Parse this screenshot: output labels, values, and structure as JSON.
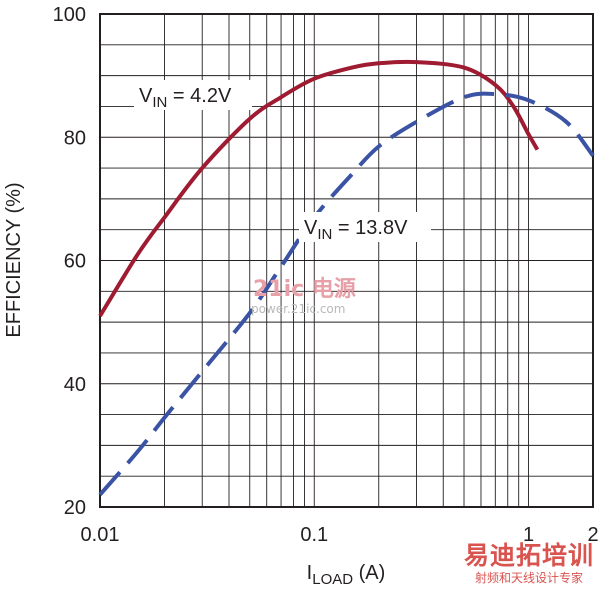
{
  "chart_data": {
    "type": "line",
    "x_scale": "log",
    "xlim": [
      0.01,
      2
    ],
    "ylim": [
      20,
      100
    ],
    "grid": true,
    "xlabel_main": "I",
    "xlabel_sub": "LOAD",
    "xlabel_unit": " (A)",
    "ylabel": "EFFICIENCY (%)",
    "x_ticks": [
      {
        "value": 0.01,
        "label": "0.01"
      },
      {
        "value": 0.1,
        "label": "0.1"
      },
      {
        "value": 1,
        "label": "1"
      },
      {
        "value": 2,
        "label": "2"
      }
    ],
    "y_ticks": [
      {
        "value": 20,
        "label": "20"
      },
      {
        "value": 40,
        "label": "40"
      },
      {
        "value": 60,
        "label": "60"
      },
      {
        "value": 80,
        "label": "80"
      },
      {
        "value": 100,
        "label": "100"
      }
    ],
    "series": [
      {
        "label_main": "V",
        "label_sub": "IN",
        "label_rest": " = 4.2V",
        "color": "#9e1b32",
        "dash": "solid",
        "x": [
          0.01,
          0.015,
          0.02,
          0.03,
          0.05,
          0.07,
          0.1,
          0.15,
          0.2,
          0.3,
          0.5,
          0.7,
          0.85,
          1.0,
          1.1
        ],
        "y": [
          51,
          61,
          67,
          75,
          83,
          86.5,
          89.5,
          91.3,
          92,
          92.2,
          91.3,
          88.5,
          85,
          80.5,
          78
        ]
      },
      {
        "label_main": "V",
        "label_sub": "IN",
        "label_rest": " = 13.8V",
        "color": "#3a53a4",
        "dash": "dashed",
        "x": [
          0.01,
          0.015,
          0.02,
          0.03,
          0.05,
          0.07,
          0.1,
          0.15,
          0.2,
          0.3,
          0.5,
          0.7,
          1.0,
          1.5,
          2.0
        ],
        "y": [
          22,
          29,
          34.5,
          42,
          51.5,
          59,
          67,
          74,
          78.5,
          82.5,
          86.5,
          87,
          86,
          82.5,
          77
        ]
      }
    ]
  },
  "watermark": {
    "center_main": "21ic 电源",
    "center_sub": "power.21ic.com",
    "corner_main": "易迪拓培训",
    "corner_sub": "射频和天线设计专家"
  }
}
